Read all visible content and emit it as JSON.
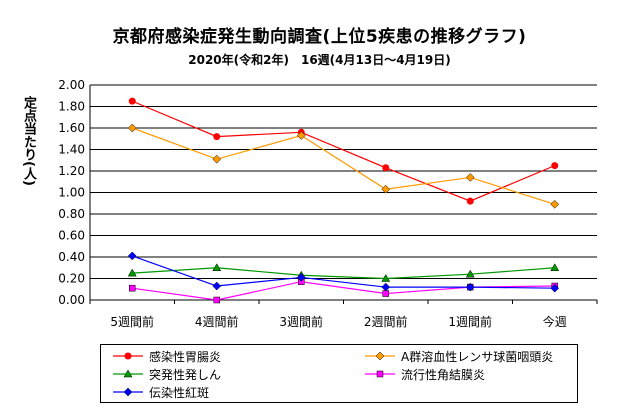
{
  "chart_data": {
    "type": "line",
    "title": "京都府感染症発生動向調査(上位5疾患の推移グラフ)",
    "subtitle": "2020年(令和2年)　16週(4月13日～4月19日)",
    "ylabel": "定点当たり(人)",
    "xlabel": "",
    "ylim": [
      0,
      2.0
    ],
    "yticks": [
      "0.00",
      "0.20",
      "0.40",
      "0.60",
      "0.80",
      "1.00",
      "1.20",
      "1.40",
      "1.60",
      "1.80",
      "2.00"
    ],
    "grid": true,
    "legend_position": "bottom",
    "categories": [
      "5週間前",
      "4週間前",
      "3週間前",
      "2週間前",
      "1週間前",
      "今週"
    ],
    "series": [
      {
        "name": "感染性胃腸炎",
        "color": "#ff0000",
        "marker": "circle",
        "values": [
          1.85,
          1.52,
          1.56,
          1.23,
          0.92,
          1.25
        ]
      },
      {
        "name": "A群溶血性レンサ球菌咽頭炎",
        "color": "#ff9900",
        "marker": "diamond",
        "values": [
          1.6,
          1.31,
          1.53,
          1.03,
          1.14,
          0.89
        ]
      },
      {
        "name": "突発性発しん",
        "color": "#009900",
        "marker": "triangle",
        "values": [
          0.25,
          0.3,
          0.23,
          0.2,
          0.24,
          0.3
        ]
      },
      {
        "name": "流行性角結膜炎",
        "color": "#ff00ff",
        "marker": "square",
        "values": [
          0.11,
          0.0,
          0.17,
          0.06,
          0.12,
          0.13
        ]
      },
      {
        "name": "伝染性紅斑",
        "color": "#0000ff",
        "marker": "diamond",
        "values": [
          0.41,
          0.13,
          0.21,
          0.12,
          0.12,
          0.11
        ]
      }
    ]
  }
}
